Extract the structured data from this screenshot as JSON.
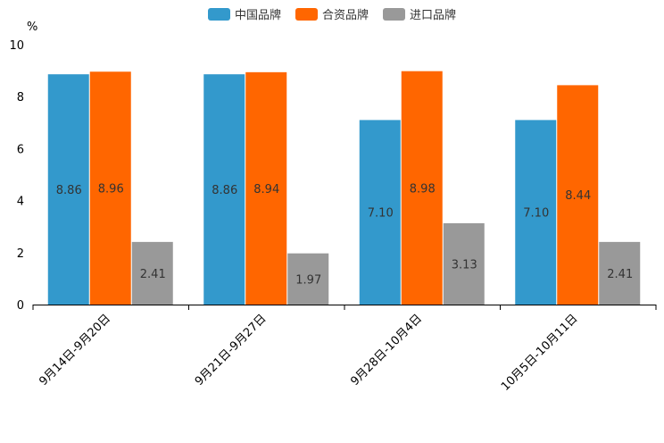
{
  "chart_data": {
    "type": "bar",
    "title": "",
    "ylabel": "%",
    "xlabel": "",
    "ylim": [
      0,
      10
    ],
    "yticks": [
      0,
      2,
      4,
      6,
      8,
      10
    ],
    "legend_position": "top-center",
    "categories": [
      "9月14日-9月20日",
      "9月21日-9月27日",
      "9月28日-10月4日",
      "10月5日-10月11日"
    ],
    "series": [
      {
        "name": "中国品牌",
        "color": "#3399cc",
        "values": [
          8.86,
          8.86,
          7.1,
          7.1
        ],
        "labels": [
          "8.86",
          "8.86",
          "7.10",
          "7.10"
        ]
      },
      {
        "name": "合资品牌",
        "color": "#ff6600",
        "values": [
          8.96,
          8.94,
          8.98,
          8.44
        ],
        "labels": [
          "8.96",
          "8.94",
          "8.98",
          "8.44"
        ]
      },
      {
        "name": "进口品牌",
        "color": "#999999",
        "values": [
          2.41,
          1.97,
          3.13,
          2.41
        ],
        "labels": [
          "2.41",
          "1.97",
          "3.13",
          "2.41"
        ]
      }
    ]
  }
}
